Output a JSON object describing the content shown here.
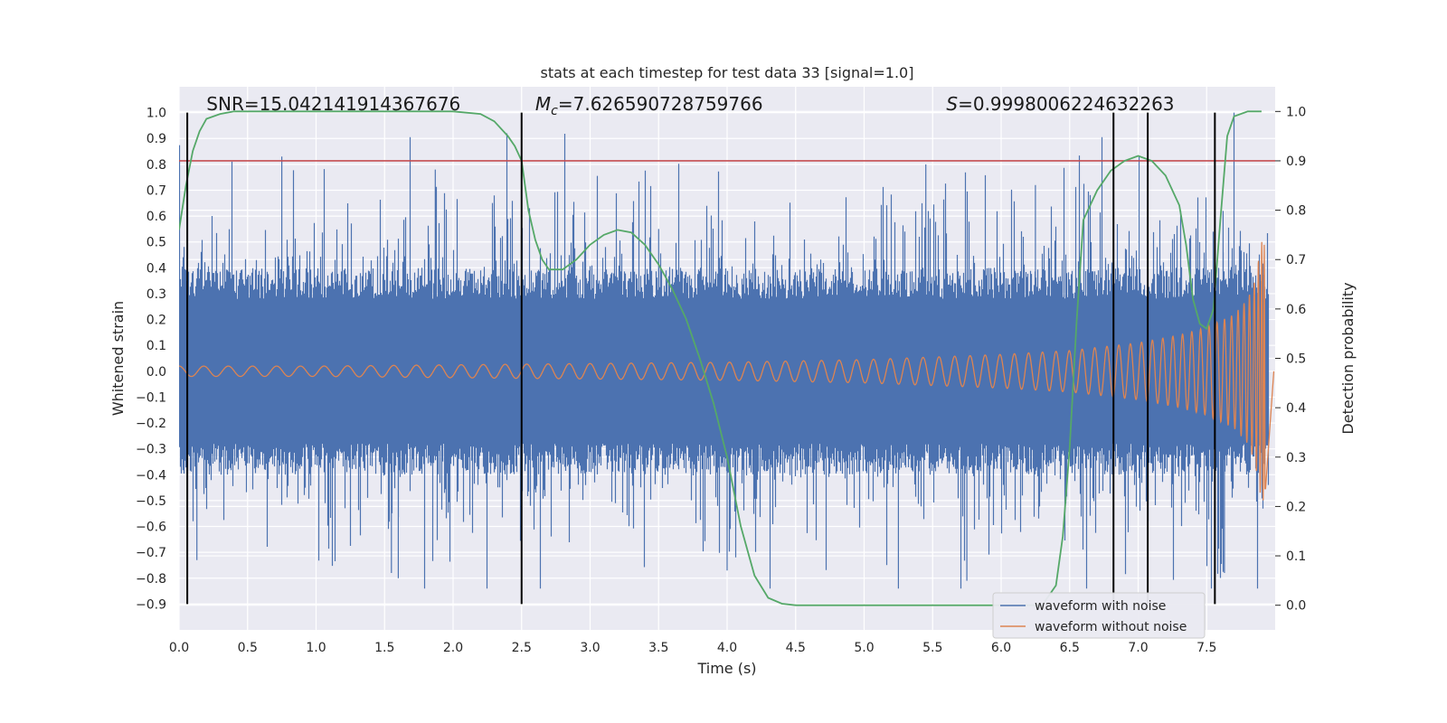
{
  "chart_data": {
    "type": "line",
    "title": "stats at each timestep for test data 33 [signal=1.0]",
    "xlabel": "Time (s)",
    "ylabel": "Whitened strain",
    "ylabel_right": "Detection probability",
    "xlim": [
      0.0,
      8.0
    ],
    "ylim": [
      -1.0,
      1.1
    ],
    "ylim_right": [
      -0.05,
      1.05
    ],
    "x_ticks": [
      0.0,
      0.5,
      1.0,
      1.5,
      2.0,
      2.5,
      3.0,
      3.5,
      4.0,
      4.5,
      5.0,
      5.5,
      6.0,
      6.5,
      7.0,
      7.5
    ],
    "x_tick_labels": [
      "0.0",
      "0.5",
      "1.0",
      "1.5",
      "2.0",
      "2.5",
      "3.0",
      "3.5",
      "4.0",
      "4.5",
      "5.0",
      "5.5",
      "6.0",
      "6.5",
      "7.0",
      "7.5"
    ],
    "y_ticks": [
      -0.9,
      -0.8,
      -0.7,
      -0.6,
      -0.5,
      -0.4,
      -0.3,
      -0.2,
      -0.1,
      0.0,
      0.1,
      0.2,
      0.3,
      0.4,
      0.5,
      0.6,
      0.7,
      0.8,
      0.9,
      1.0
    ],
    "y_tick_labels": [
      "−0.9",
      "−0.8",
      "−0.7",
      "−0.6",
      "−0.5",
      "−0.4",
      "−0.3",
      "−0.2",
      "−0.1",
      "0.0",
      "0.1",
      "0.2",
      "0.3",
      "0.4",
      "0.5",
      "0.6",
      "0.7",
      "0.8",
      "0.9",
      "1.0"
    ],
    "y_right_ticks": [
      0.0,
      0.1,
      0.2,
      0.3,
      0.4,
      0.5,
      0.6,
      0.7,
      0.8,
      0.9,
      1.0
    ],
    "y_right_tick_labels": [
      "0.0",
      "0.1",
      "0.2",
      "0.3",
      "0.4",
      "0.5",
      "0.6",
      "0.7",
      "0.8",
      "0.9",
      "1.0"
    ],
    "grid": true,
    "legend_position": "lower right",
    "annotations": [
      {
        "text": "SNR=15.042141914367676",
        "x": 0.2
      },
      {
        "text": "M_c=7.626590728759766",
        "x": 2.6
      },
      {
        "text": "S=0.9998006224632263",
        "x": 5.6
      }
    ],
    "series": [
      {
        "name": "waveform with noise",
        "color": "#4c72b0",
        "kind": "noise",
        "duration": 7.95,
        "typical_amplitude": 0.35,
        "max": 1.0,
        "min": -0.84
      },
      {
        "name": "waveform without noise",
        "color": "#dd8452",
        "kind": "chirp",
        "duration": 7.93,
        "x": [
          0.0,
          1.0,
          2.0,
          3.0,
          4.0,
          5.0,
          6.0,
          6.5,
          7.0,
          7.3,
          7.5,
          7.7,
          7.8,
          7.85,
          7.9
        ],
        "envelope": [
          0.02,
          0.02,
          0.025,
          0.03,
          0.035,
          0.045,
          0.065,
          0.08,
          0.11,
          0.14,
          0.17,
          0.22,
          0.28,
          0.35,
          0.5
        ]
      },
      {
        "name": "detection probability",
        "color": "#55a868",
        "axis": "right",
        "x": [
          0.0,
          0.05,
          0.1,
          0.15,
          0.2,
          0.3,
          0.4,
          0.5,
          1.0,
          1.5,
          2.0,
          2.2,
          2.3,
          2.4,
          2.45,
          2.5,
          2.55,
          2.6,
          2.65,
          2.7,
          2.8,
          2.9,
          3.0,
          3.1,
          3.2,
          3.3,
          3.4,
          3.5,
          3.6,
          3.7,
          3.8,
          3.9,
          4.0,
          4.1,
          4.2,
          4.3,
          4.4,
          4.5,
          5.0,
          5.5,
          6.0,
          6.3,
          6.4,
          6.45,
          6.5,
          6.55,
          6.6,
          6.7,
          6.8,
          6.9,
          7.0,
          7.1,
          7.2,
          7.3,
          7.35,
          7.4,
          7.45,
          7.5,
          7.55,
          7.6,
          7.65,
          7.7,
          7.8,
          7.9
        ],
        "y": [
          0.76,
          0.85,
          0.92,
          0.96,
          0.985,
          0.995,
          1.0,
          1.0,
          1.0,
          1.0,
          1.0,
          0.995,
          0.98,
          0.95,
          0.93,
          0.9,
          0.8,
          0.74,
          0.7,
          0.68,
          0.68,
          0.7,
          0.73,
          0.75,
          0.76,
          0.755,
          0.73,
          0.69,
          0.64,
          0.58,
          0.5,
          0.41,
          0.3,
          0.16,
          0.06,
          0.015,
          0.003,
          0.0,
          0.0,
          0.0,
          0.0,
          0.0,
          0.04,
          0.14,
          0.32,
          0.57,
          0.78,
          0.84,
          0.88,
          0.9,
          0.91,
          0.9,
          0.87,
          0.81,
          0.73,
          0.62,
          0.57,
          0.56,
          0.6,
          0.78,
          0.95,
          0.99,
          1.0,
          1.0
        ]
      },
      {
        "name": "threshold",
        "color": "#c44e52",
        "axis": "right",
        "y_value": 0.9
      }
    ],
    "vertical_lines": {
      "color": "#000000",
      "x": [
        0.06,
        2.5,
        6.82,
        7.07,
        7.56
      ],
      "y_range": [
        -0.9,
        1.0
      ]
    }
  }
}
